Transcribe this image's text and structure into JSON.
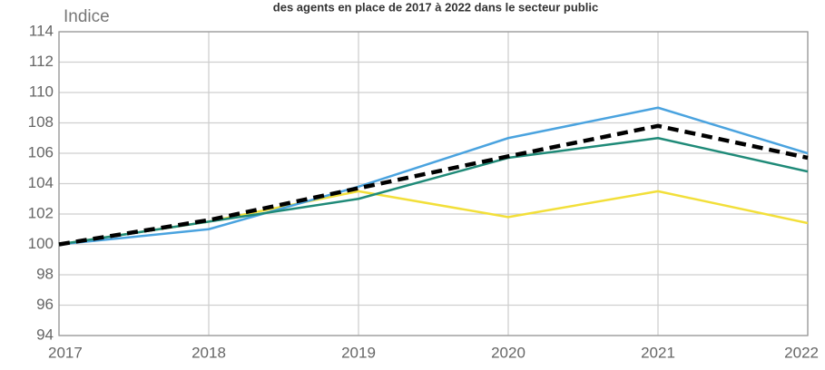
{
  "chart_data": {
    "type": "line",
    "title": "des agents en place de 2017 à 2022 dans le secteur public",
    "y_label": "Indice",
    "x": [
      2017,
      2018,
      2019,
      2020,
      2021,
      2022
    ],
    "xlim": [
      2017,
      2022
    ],
    "xticks": [
      2017,
      2018,
      2019,
      2020,
      2021,
      2022
    ],
    "ylim": [
      94,
      114
    ],
    "yticks": [
      94,
      96,
      98,
      100,
      102,
      104,
      106,
      108,
      110,
      112,
      114
    ],
    "grid": true,
    "series": [
      {
        "color": "#f2df3a",
        "values": [
          100,
          101.5,
          103.5,
          101.8,
          103.5,
          101.4
        ]
      },
      {
        "color": "#4aa3df",
        "values": [
          100,
          101,
          103.8,
          107,
          109,
          106
        ]
      },
      {
        "color": "#1f8a78",
        "values": [
          100,
          101.5,
          103,
          105.7,
          107,
          104.8
        ]
      },
      {
        "color": "#000000",
        "dashed": true,
        "values": [
          100,
          101.6,
          103.7,
          105.8,
          107.8,
          105.7
        ]
      }
    ]
  }
}
